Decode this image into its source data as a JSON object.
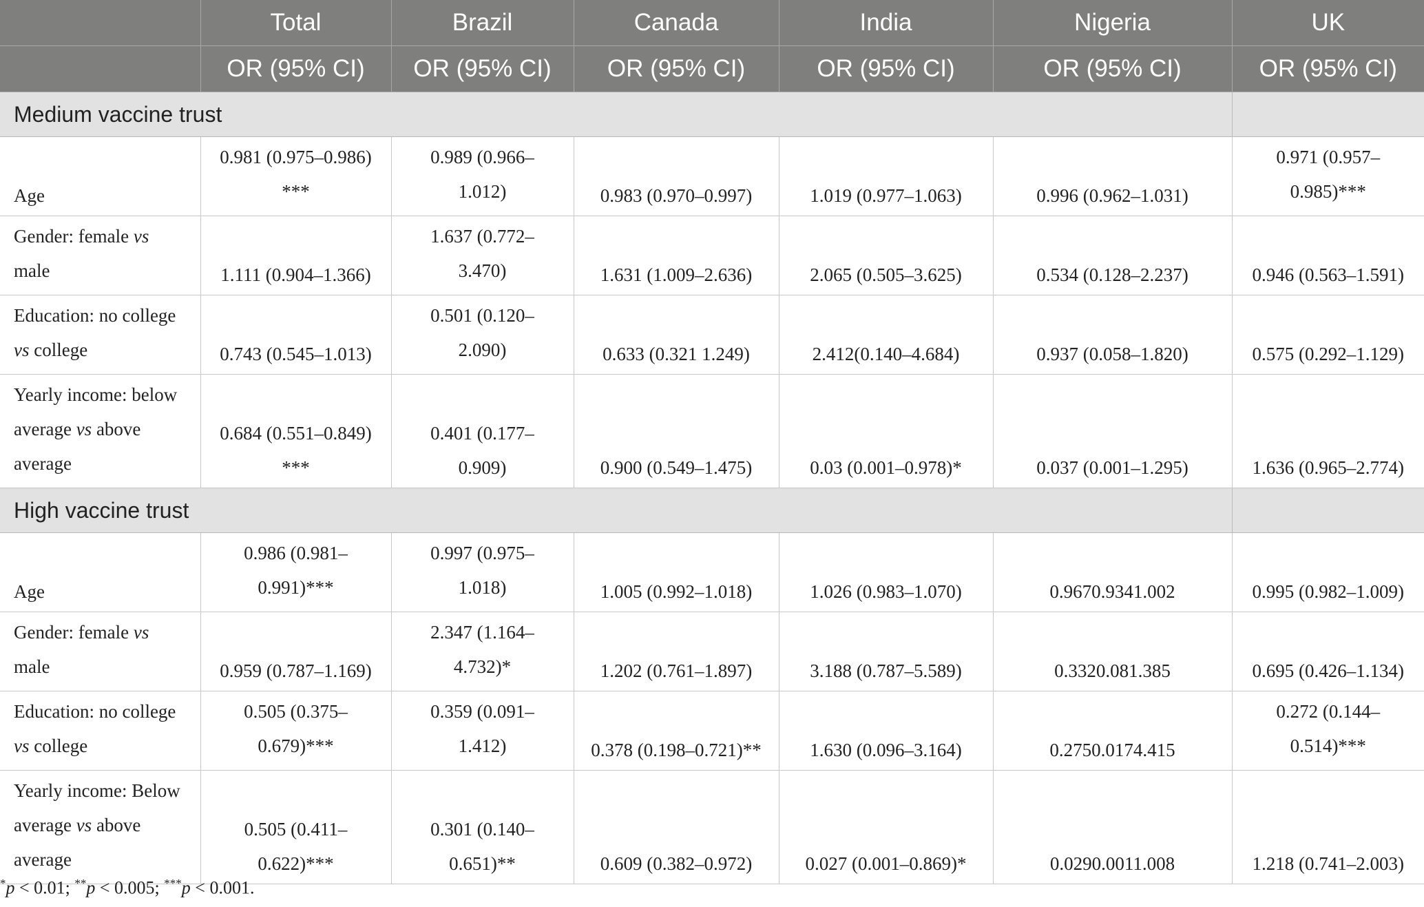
{
  "header": {
    "columns": [
      "",
      "Total",
      "Brazil",
      "Canada",
      "India",
      "Nigeria",
      "UK"
    ],
    "subheader": [
      "",
      "OR (95% CI)",
      "OR (95% CI)",
      "OR (95% CI)",
      "OR (95% CI)",
      "OR (95% CI)",
      "OR (95% CI)"
    ]
  },
  "sections": [
    {
      "title": "Medium vaccine trust",
      "rows": [
        {
          "label": [
            "Age"
          ],
          "cells": [
            [
              "0.981 (0.975–0.986)",
              "***"
            ],
            [
              "0.989 (0.966–",
              "1.012)"
            ],
            [
              "0.983 (0.970–0.997)"
            ],
            [
              "1.019 (0.977–1.063)"
            ],
            [
              "0.996 (0.962–1.031)"
            ],
            [
              "0.971 (0.957–",
              "0.985)***"
            ]
          ]
        },
        {
          "label": [
            "Gender: female vs",
            "male"
          ],
          "cells": [
            [
              "1.111 (0.904–1.366)"
            ],
            [
              "1.637 (0.772–",
              "3.470)"
            ],
            [
              "1.631 (1.009–2.636)"
            ],
            [
              "2.065 (0.505–3.625)"
            ],
            [
              "0.534 (0.128–2.237)"
            ],
            [
              "0.946 (0.563–1.591)"
            ]
          ]
        },
        {
          "label": [
            "Education: no college",
            "vs college"
          ],
          "cells": [
            [
              "0.743 (0.545–1.013)"
            ],
            [
              "0.501 (0.120–",
              "2.090)"
            ],
            [
              "0.633 (0.321 1.249)"
            ],
            [
              "2.412(0.140–4.684)"
            ],
            [
              "0.937 (0.058–1.820)"
            ],
            [
              "0.575 (0.292–1.129)"
            ]
          ]
        },
        {
          "label": [
            "Yearly income: below",
            "average vs above",
            "average"
          ],
          "cells": [
            [
              "0.684 (0.551–0.849)",
              "***"
            ],
            [
              "0.401 (0.177–",
              "0.909)"
            ],
            [
              "0.900 (0.549–1.475)"
            ],
            [
              "0.03 (0.001–0.978)*"
            ],
            [
              "0.037 (0.001–1.295)"
            ],
            [
              "1.636 (0.965–2.774)"
            ]
          ]
        }
      ]
    },
    {
      "title": "High vaccine trust",
      "rows": [
        {
          "label": [
            "Age"
          ],
          "cells": [
            [
              "0.986 (0.981–",
              "0.991)***"
            ],
            [
              "0.997 (0.975–",
              "1.018)"
            ],
            [
              "1.005 (0.992–1.018)"
            ],
            [
              "1.026 (0.983–1.070)"
            ],
            [
              "0.9670.9341.002"
            ],
            [
              "0.995 (0.982–1.009)"
            ]
          ]
        },
        {
          "label": [
            "Gender: female vs",
            "male"
          ],
          "cells": [
            [
              "0.959 (0.787–1.169)"
            ],
            [
              "2.347 (1.164–",
              "4.732)*"
            ],
            [
              "1.202 (0.761–1.897)"
            ],
            [
              "3.188 (0.787–5.589)"
            ],
            [
              "0.3320.081.385"
            ],
            [
              "0.695 (0.426–1.134)"
            ]
          ]
        },
        {
          "label": [
            "Education: no college",
            "vs college"
          ],
          "cells": [
            [
              "0.505 (0.375–",
              "0.679)***"
            ],
            [
              "0.359 (0.091–",
              "1.412)"
            ],
            [
              "0.378 (0.198–0.721)**"
            ],
            [
              "1.630 (0.096–3.164)"
            ],
            [
              "0.2750.0174.415"
            ],
            [
              "0.272 (0.144–",
              "0.514)***"
            ]
          ]
        },
        {
          "label": [
            "Yearly income: Below",
            "average vs above",
            "average"
          ],
          "cells": [
            [
              "0.505 (0.411–",
              "0.622)***"
            ],
            [
              "0.301 (0.140–",
              "0.651)**"
            ],
            [
              "0.609 (0.382–0.972)"
            ],
            [
              "0.027 (0.001–0.869)*"
            ],
            [
              "0.0290.0011.008"
            ],
            [
              "1.218 (0.741–2.003)"
            ]
          ]
        }
      ]
    }
  ],
  "footnote": {
    "parts": [
      {
        "sup": "*",
        "var": "p",
        "text": " < 0.01; "
      },
      {
        "sup": "**",
        "var": "p",
        "text": " < 0.005; "
      },
      {
        "sup": "***",
        "var": "p",
        "text": " < 0.001."
      }
    ]
  }
}
